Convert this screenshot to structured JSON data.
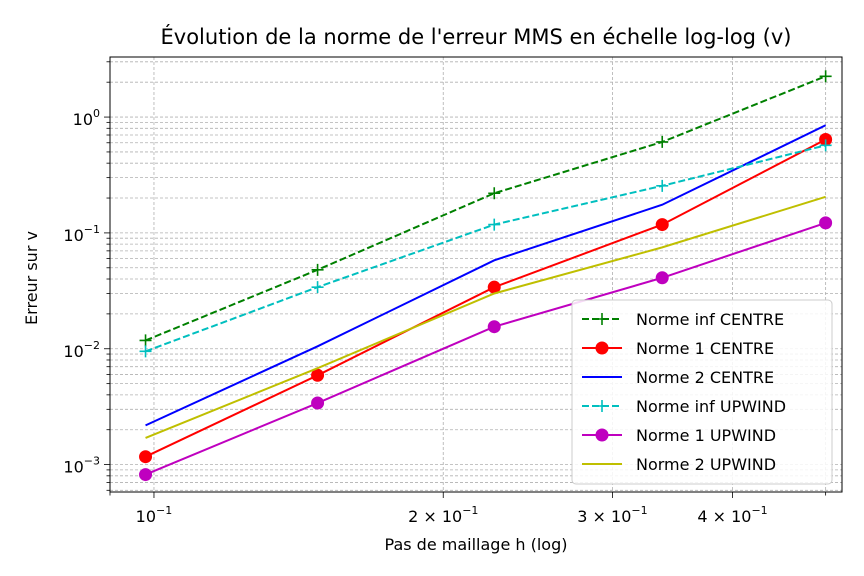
{
  "chart_data": {
    "type": "line",
    "title": "Évolution de la norme de l'erreur MMS en échelle log-log (v)",
    "xlabel": "Pas de maillage h (log)",
    "ylabel": "Erreur sur v",
    "xscale": "log",
    "yscale": "log",
    "xlim": [
      0.09,
      0.52
    ],
    "ylim": [
      0.00058,
      3.3
    ],
    "grid": true,
    "legend_position": "lower-right",
    "x_ticks": [
      {
        "value": 0.1,
        "base": "10",
        "exp": "−1"
      },
      {
        "value": 0.2,
        "base": "2 × 10",
        "exp": "−1"
      },
      {
        "value": 0.3,
        "base": "3 × 10",
        "exp": "−1"
      },
      {
        "value": 0.4,
        "base": "4 × 10",
        "exp": "−1"
      }
    ],
    "y_ticks": [
      {
        "value": 0.001,
        "base": "10",
        "exp": "−3"
      },
      {
        "value": 0.01,
        "base": "10",
        "exp": "−2"
      },
      {
        "value": 0.1,
        "base": "10",
        "exp": "−1"
      },
      {
        "value": 1,
        "base": "10",
        "exp": "0"
      }
    ],
    "x": [
      0.098,
      0.148,
      0.226,
      0.338,
      0.5
    ],
    "series": [
      {
        "name": "Norme inf CENTRE",
        "color": "#008000",
        "dash": "dashed",
        "marker": "plus",
        "values": [
          0.0118,
          0.048,
          0.22,
          0.61,
          2.25
        ]
      },
      {
        "name": "Norme 1 CENTRE",
        "color": "#ff0000",
        "dash": "solid",
        "marker": "circle",
        "values": [
          0.00117,
          0.0059,
          0.034,
          0.118,
          0.64
        ]
      },
      {
        "name": "Norme 2 CENTRE",
        "color": "#0000ff",
        "dash": "solid",
        "marker": "none",
        "values": [
          0.00218,
          0.0105,
          0.058,
          0.175,
          0.85
        ]
      },
      {
        "name": "Norme inf UPWIND",
        "color": "#00bfbf",
        "dash": "dashed",
        "marker": "plus",
        "values": [
          0.0095,
          0.034,
          0.118,
          0.255,
          0.57
        ]
      },
      {
        "name": "Norme 1 UPWIND",
        "color": "#bf00bf",
        "dash": "solid",
        "marker": "circle",
        "values": [
          0.00082,
          0.0034,
          0.0155,
          0.041,
          0.122
        ]
      },
      {
        "name": "Norme 2 UPWIND",
        "color": "#bfbf00",
        "dash": "solid",
        "marker": "none",
        "values": [
          0.0017,
          0.0068,
          0.03,
          0.075,
          0.205
        ]
      }
    ]
  }
}
